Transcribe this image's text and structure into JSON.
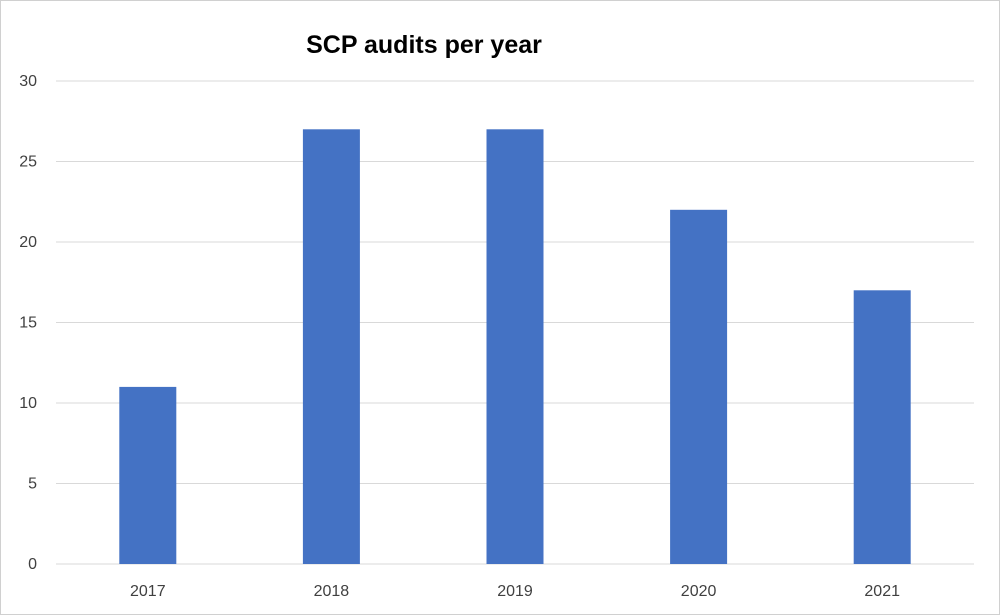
{
  "chart_data": {
    "type": "bar",
    "title": "SCP audits per year",
    "categories": [
      "2017",
      "2018",
      "2019",
      "2020",
      "2021"
    ],
    "values": [
      11,
      27,
      27,
      22,
      17
    ],
    "xlabel": "",
    "ylabel": "",
    "ylim": [
      0,
      30
    ],
    "yticks": [
      0,
      5,
      10,
      15,
      20,
      25,
      30
    ],
    "grid": true,
    "legend": "none",
    "bar_color": "#4472C4",
    "grid_color": "#d9d9d9"
  }
}
